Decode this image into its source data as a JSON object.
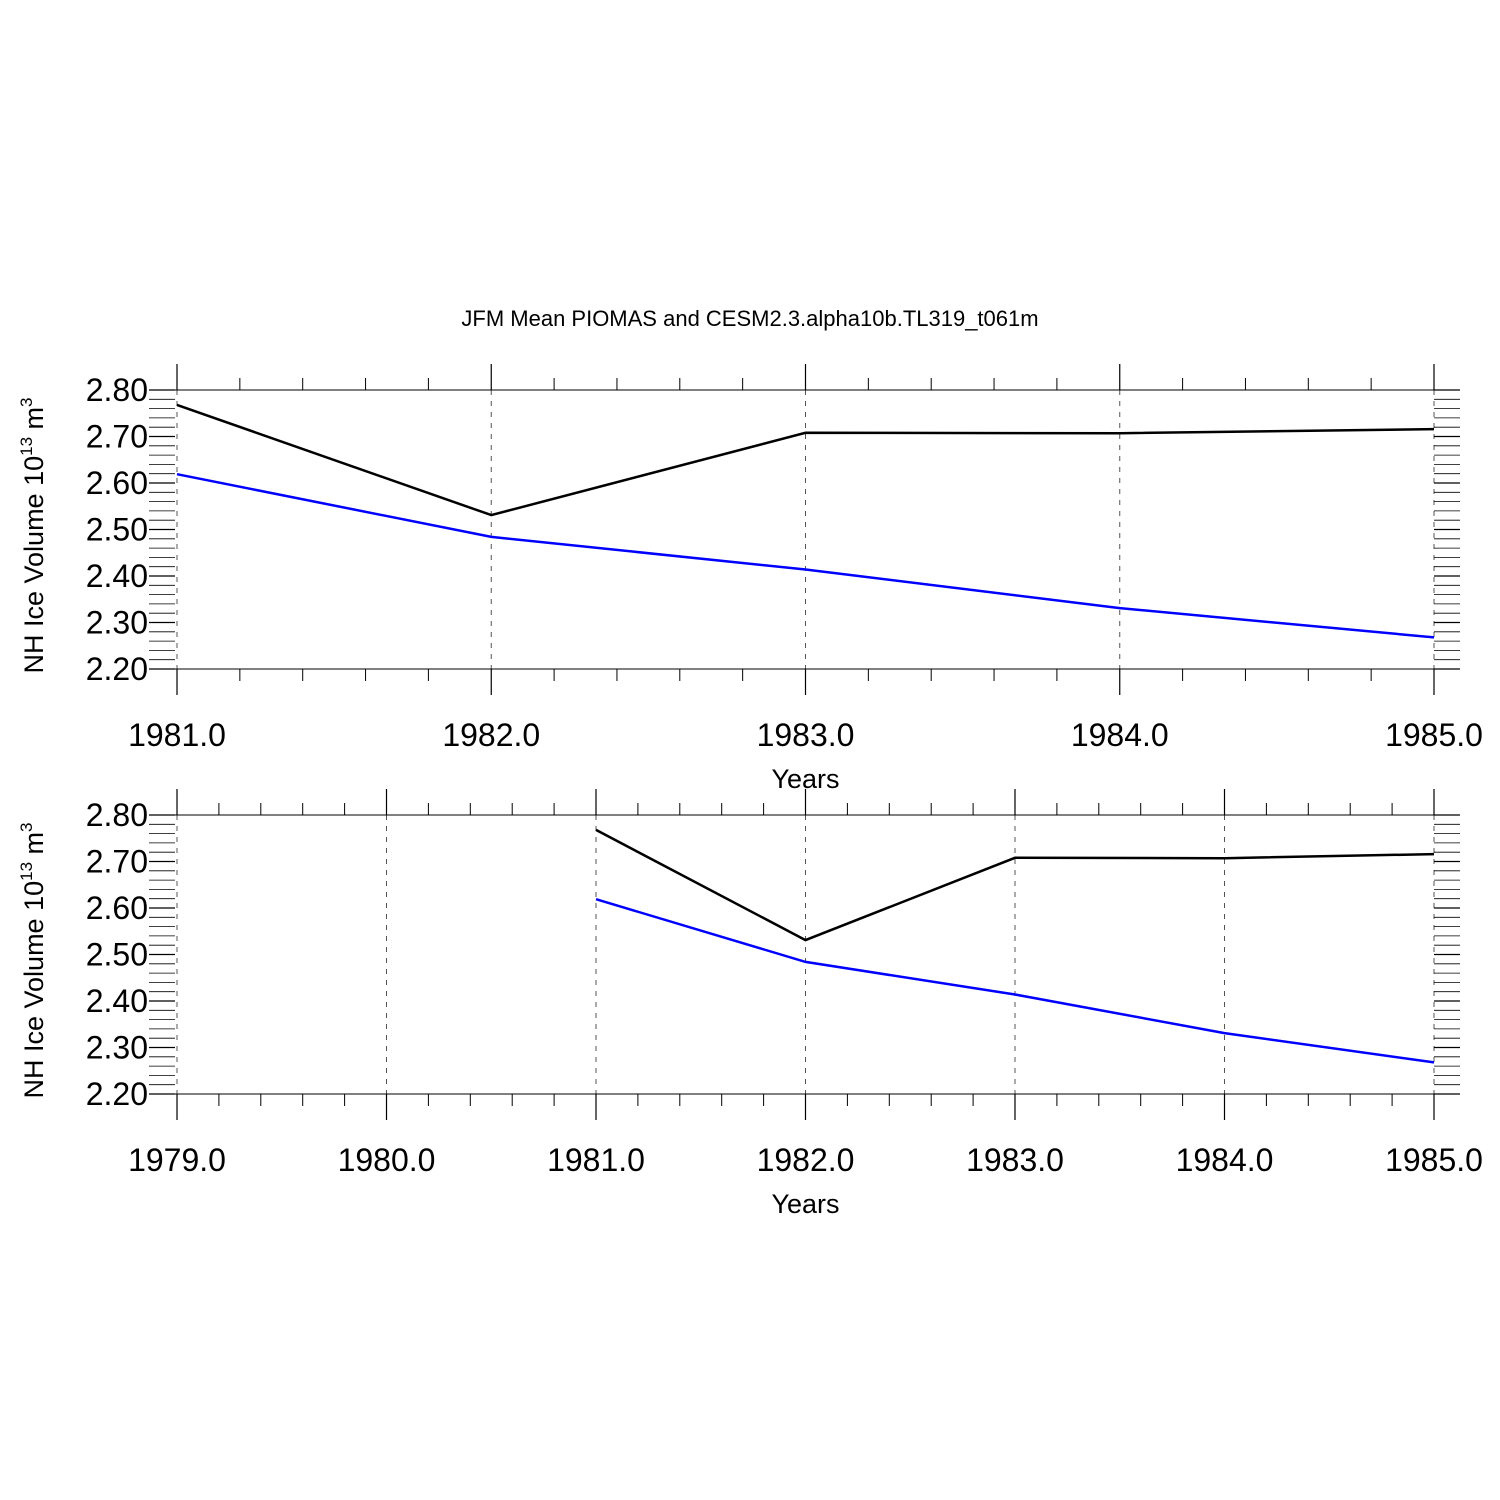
{
  "title": "JFM Mean PIOMAS and CESM2.3.alpha10b.TL319_t061m",
  "chart_data": [
    {
      "type": "line",
      "xlabel": "Years",
      "ylabel": {
        "base": "NH Ice Volume 10",
        "exponent": "13",
        "unit": " m",
        "unit_exponent": "3"
      },
      "xlim": [
        1981,
        1985
      ],
      "ylim": [
        2.2,
        2.8
      ],
      "x_ticks": [
        1981,
        1982,
        1983,
        1984,
        1985
      ],
      "x_tick_labels": [
        "1981.0",
        "1982.0",
        "1983.0",
        "1984.0",
        "1985.0"
      ],
      "y_ticks": [
        2.2,
        2.3,
        2.4,
        2.5,
        2.6,
        2.7,
        2.8
      ],
      "y_tick_labels": [
        "2.20",
        "2.30",
        "2.40",
        "2.50",
        "2.60",
        "2.70",
        "2.80"
      ],
      "x_minor_step": 0.2,
      "y_minor_step": 0.02,
      "grid": "vertical dashed at major x ticks",
      "series": [
        {
          "color": "#000000",
          "x": [
            1981,
            1982,
            1983,
            1984,
            1985
          ],
          "values": [
            2.768,
            2.531,
            2.708,
            2.707,
            2.716
          ]
        },
        {
          "color": "#0000ff",
          "x": [
            1981,
            1982,
            1983,
            1984,
            1985
          ],
          "values": [
            2.619,
            2.484,
            2.414,
            2.331,
            2.268
          ]
        }
      ]
    },
    {
      "type": "line",
      "xlabel": "Years",
      "ylabel": {
        "base": "NH Ice Volume 10",
        "exponent": "13",
        "unit": " m",
        "unit_exponent": "3"
      },
      "xlim": [
        1979,
        1985
      ],
      "ylim": [
        2.2,
        2.8
      ],
      "x_ticks": [
        1979,
        1980,
        1981,
        1982,
        1983,
        1984,
        1985
      ],
      "x_tick_labels": [
        "1979.0",
        "1980.0",
        "1981.0",
        "1982.0",
        "1983.0",
        "1984.0",
        "1985.0"
      ],
      "y_ticks": [
        2.2,
        2.3,
        2.4,
        2.5,
        2.6,
        2.7,
        2.8
      ],
      "y_tick_labels": [
        "2.20",
        "2.30",
        "2.40",
        "2.50",
        "2.60",
        "2.70",
        "2.80"
      ],
      "x_minor_step": 0.2,
      "y_minor_step": 0.02,
      "grid": "vertical dashed at major x ticks",
      "series": [
        {
          "color": "#000000",
          "x": [
            1981,
            1982,
            1983,
            1984,
            1985
          ],
          "values": [
            2.768,
            2.531,
            2.708,
            2.707,
            2.716
          ]
        },
        {
          "color": "#0000ff",
          "x": [
            1981,
            1982,
            1983,
            1984,
            1985
          ],
          "values": [
            2.619,
            2.484,
            2.414,
            2.331,
            2.268
          ]
        }
      ]
    }
  ]
}
